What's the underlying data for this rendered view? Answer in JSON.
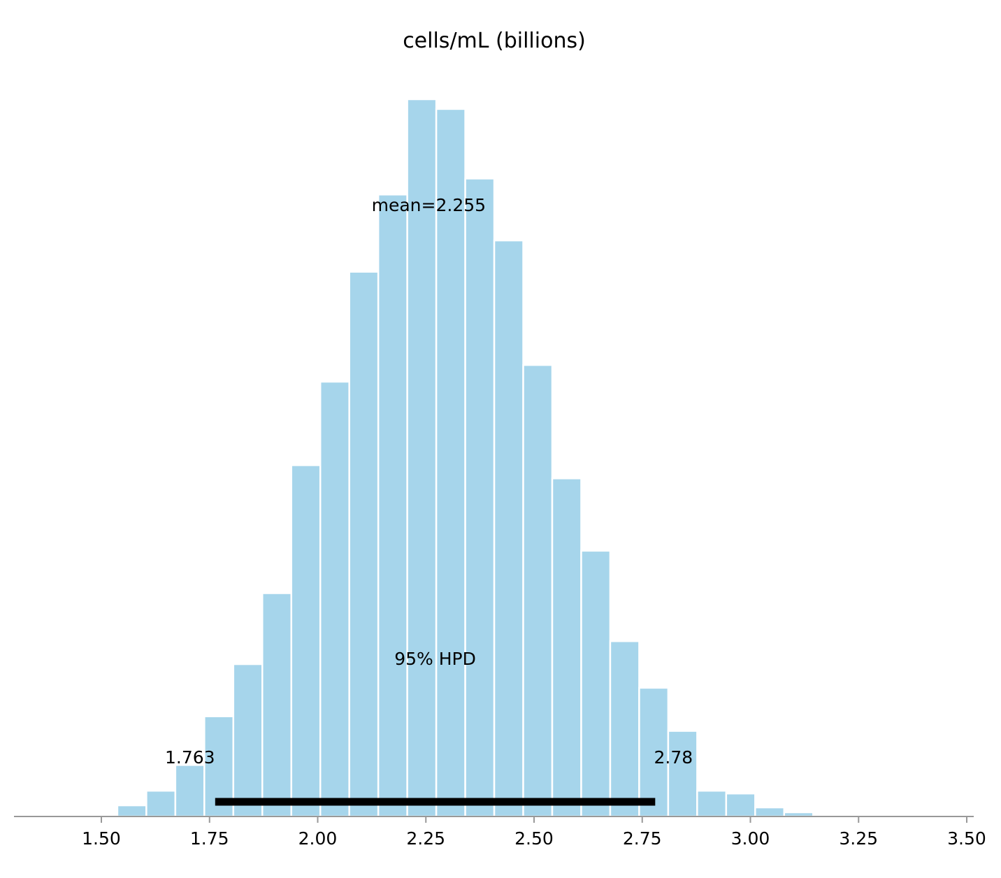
{
  "chart_data": {
    "type": "bar",
    "title": "cells/mL (billions)",
    "xlabel": "",
    "ylabel": "",
    "xlim": [
      1.3,
      3.52
    ],
    "ylim": [
      0,
      1035
    ],
    "grid": false,
    "x_ticks": [
      {
        "value": 1.5,
        "label": "1.50"
      },
      {
        "value": 1.75,
        "label": "1.75"
      },
      {
        "value": 2.0,
        "label": "2.00"
      },
      {
        "value": 2.25,
        "label": "2.25"
      },
      {
        "value": 2.5,
        "label": "2.50"
      },
      {
        "value": 2.75,
        "label": "2.75"
      },
      {
        "value": 3.0,
        "label": "3.00"
      },
      {
        "value": 3.25,
        "label": "3.25"
      },
      {
        "value": 3.5,
        "label": "3.50"
      }
    ],
    "bin_width": 0.067,
    "bins": [
      {
        "x0": 1.537,
        "count": 16
      },
      {
        "x0": 1.604,
        "count": 37
      },
      {
        "x0": 1.671,
        "count": 74
      },
      {
        "x0": 1.738,
        "count": 144
      },
      {
        "x0": 1.805,
        "count": 219
      },
      {
        "x0": 1.872,
        "count": 321
      },
      {
        "x0": 1.939,
        "count": 505
      },
      {
        "x0": 2.006,
        "count": 625
      },
      {
        "x0": 2.073,
        "count": 783
      },
      {
        "x0": 2.14,
        "count": 894
      },
      {
        "x0": 2.207,
        "count": 1031
      },
      {
        "x0": 2.274,
        "count": 1017
      },
      {
        "x0": 2.341,
        "count": 917
      },
      {
        "x0": 2.408,
        "count": 828
      },
      {
        "x0": 2.475,
        "count": 649
      },
      {
        "x0": 2.542,
        "count": 486
      },
      {
        "x0": 2.609,
        "count": 382
      },
      {
        "x0": 2.676,
        "count": 252
      },
      {
        "x0": 2.743,
        "count": 185
      },
      {
        "x0": 2.81,
        "count": 123
      },
      {
        "x0": 2.877,
        "count": 37
      },
      {
        "x0": 2.944,
        "count": 33
      },
      {
        "x0": 3.011,
        "count": 13
      },
      {
        "x0": 3.078,
        "count": 6
      },
      {
        "x0": 3.145,
        "count": 2
      }
    ],
    "mean": {
      "value": 2.255,
      "label": "mean=2.255"
    },
    "hpd": {
      "label": "95% HPD",
      "low": 1.763,
      "high": 2.78,
      "low_label": "1.763",
      "high_label": "2.78"
    },
    "colors": {
      "bar": "#a6d5eb",
      "bar_edge": "#ffffff",
      "axis": "#999999",
      "hpd_line": "#000000"
    }
  }
}
